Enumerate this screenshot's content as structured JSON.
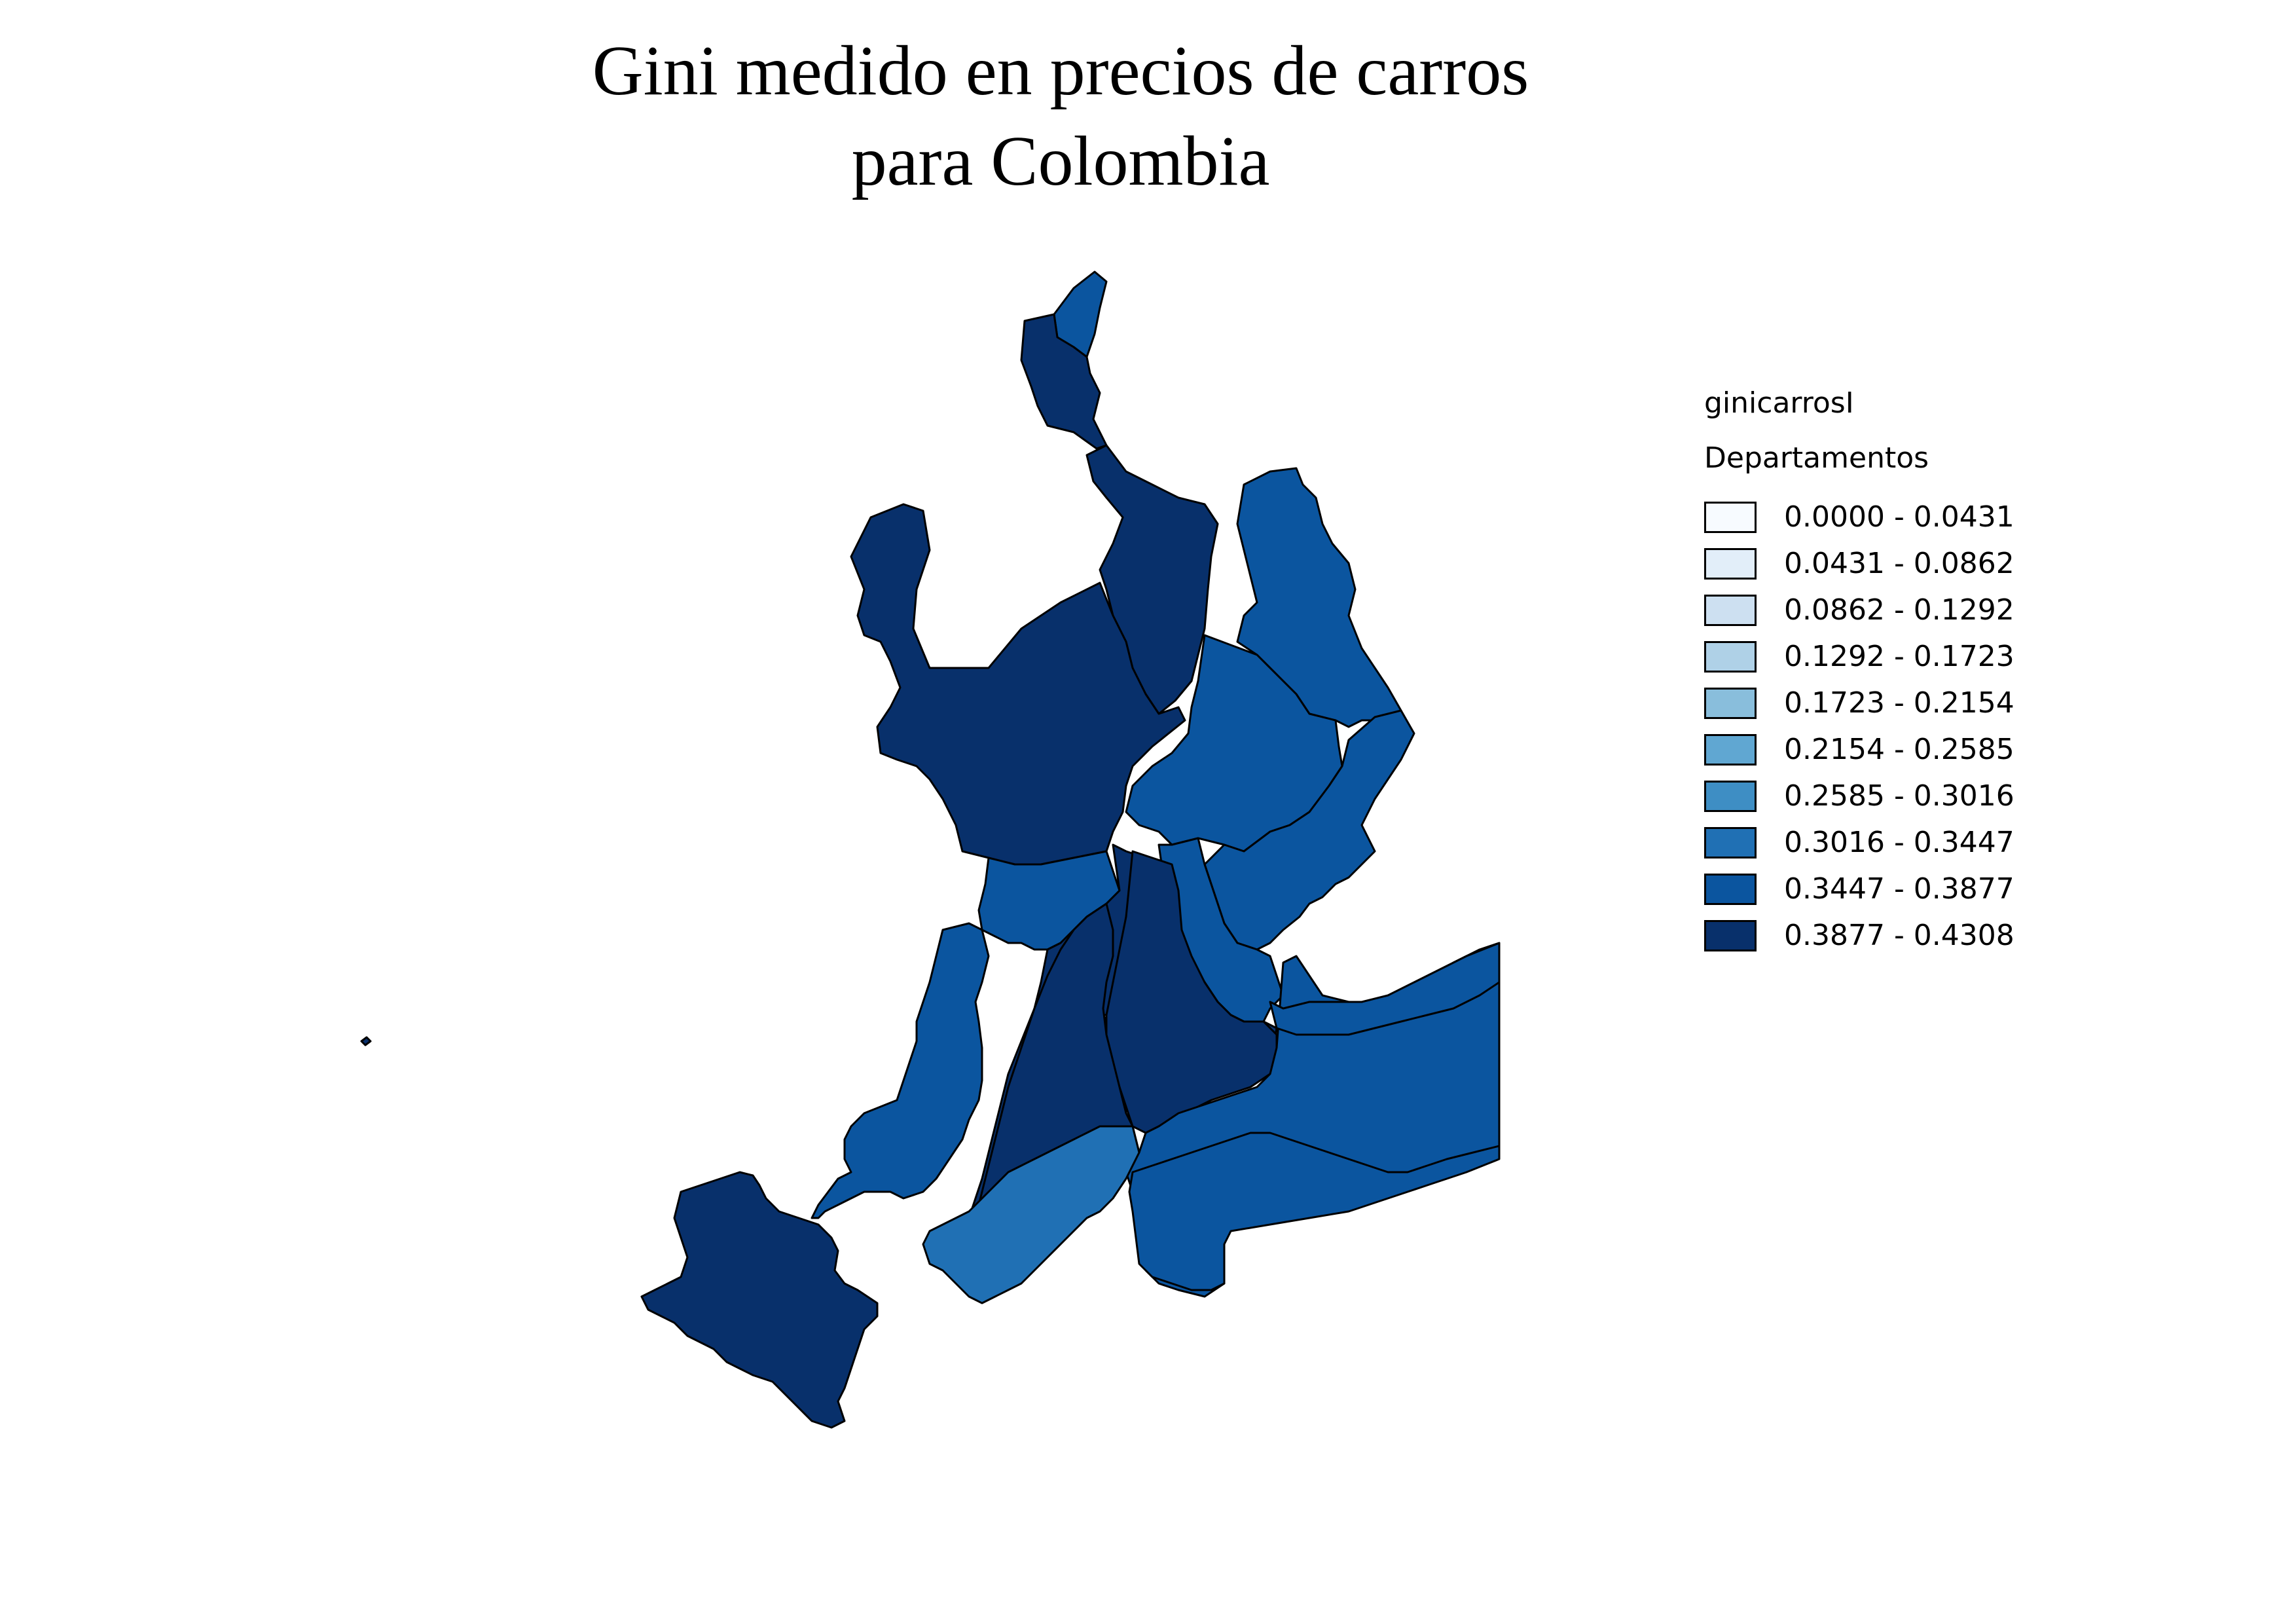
{
  "title": {
    "line1": "Gini medido en precios de carros",
    "line2": "para Colombia"
  },
  "legend": {
    "layer_name": "ginicarrosI",
    "subtitle": "Departamentos",
    "classes": [
      {
        "label": "0.0000 - 0.0431",
        "color": "#f7fbff"
      },
      {
        "label": "0.0431 - 0.0862",
        "color": "#e2eef9"
      },
      {
        "label": "0.0862 - 0.1292",
        "color": "#cde0f1"
      },
      {
        "label": "0.1292 - 0.1723",
        "color": "#afd1e7"
      },
      {
        "label": "0.1723 - 0.2154",
        "color": "#89bedc"
      },
      {
        "label": "0.2154 - 0.2585",
        "color": "#60a7d2"
      },
      {
        "label": "0.2585 - 0.3016",
        "color": "#3e8ec4"
      },
      {
        "label": "0.3016 - 0.3447",
        "color": "#2070b4"
      },
      {
        "label": "0.3447 - 0.3877",
        "color": "#0b559f"
      },
      {
        "label": "0.3877 - 0.4308",
        "color": "#08306b"
      }
    ]
  },
  "map": {
    "regions": [
      {
        "class": 8
      },
      {
        "class": 9
      },
      {
        "class": 9
      },
      {
        "class": 9
      },
      {
        "class": 8
      },
      {
        "class": 8
      },
      {
        "class": 8
      },
      {
        "class": 8
      },
      {
        "class": 8
      },
      {
        "class": 9
      },
      {
        "class": 8
      },
      {
        "class": 9
      },
      {
        "class": 9
      },
      {
        "class": 9
      },
      {
        "class": 8
      },
      {
        "class": 8
      },
      {
        "class": 7
      },
      {
        "class": 8
      },
      {
        "class": 9
      },
      {
        "class": 9
      }
    ]
  }
}
